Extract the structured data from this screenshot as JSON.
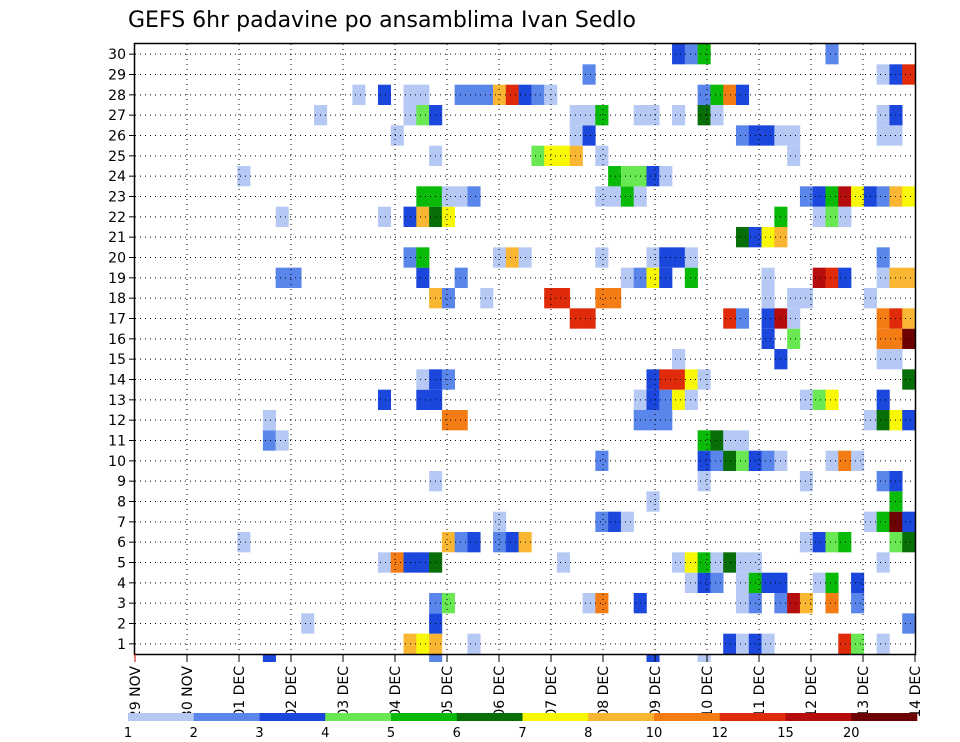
{
  "chart_data": {
    "type": "heatmap",
    "title": "GEFS 6hr padavine po ansamblima Ivan Sedlo",
    "x_tick_labels": [
      "29 NOV",
      "30 NOV",
      "01 DEC",
      "02 DEC",
      "03 DEC",
      "04 DEC",
      "05 DEC",
      "06 DEC",
      "07 DEC",
      "08 DEC",
      "09 DEC",
      "10 DEC",
      "11 DEC",
      "12 DEC",
      "13 DEC",
      "14 DEC"
    ],
    "y_members": [
      1,
      2,
      3,
      4,
      5,
      6,
      7,
      8,
      9,
      10,
      11,
      12,
      13,
      14,
      15,
      16,
      17,
      18,
      19,
      20,
      21,
      22,
      23,
      24,
      25,
      26,
      27,
      28,
      29,
      30
    ],
    "time_step_hours": 6,
    "columns": 61,
    "ylim": [
      0,
      30
    ],
    "grid": true,
    "legend_position": "bottom",
    "levels": [
      1,
      2,
      3,
      4,
      5,
      6,
      7,
      8,
      10,
      12,
      15,
      20
    ],
    "level_labels": [
      "1",
      "2",
      "3",
      "4",
      "5",
      "6",
      "7",
      "8",
      "10",
      "12",
      "15",
      "20"
    ],
    "colors": [
      "#b6c9f5",
      "#5a86ec",
      "#1c47dc",
      "#69e854",
      "#09ba09",
      "#086e08",
      "#f8f806",
      "#f8b632",
      "#f37c14",
      "#e02b0b",
      "#b50d0d",
      "#6e0202"
    ],
    "cells": [
      [
        1,
        21,
        8
      ],
      [
        1,
        22,
        7
      ],
      [
        1,
        23,
        8
      ],
      [
        1,
        26,
        1
      ],
      [
        1,
        46,
        3
      ],
      [
        1,
        47,
        1
      ],
      [
        1,
        48,
        3
      ],
      [
        1,
        49,
        1
      ],
      [
        1,
        55,
        10
      ],
      [
        1,
        56,
        4
      ],
      [
        1,
        58,
        1
      ],
      [
        2,
        13,
        1
      ],
      [
        2,
        23,
        3
      ],
      [
        2,
        60,
        2
      ],
      [
        3,
        23,
        2
      ],
      [
        3,
        24,
        4
      ],
      [
        3,
        35,
        1
      ],
      [
        3,
        36,
        9
      ],
      [
        3,
        39,
        3
      ],
      [
        3,
        47,
        1
      ],
      [
        3,
        48,
        2
      ],
      [
        3,
        50,
        2
      ],
      [
        3,
        51,
        11
      ],
      [
        3,
        52,
        8
      ],
      [
        3,
        54,
        9
      ],
      [
        3,
        56,
        2
      ],
      [
        4,
        43,
        1
      ],
      [
        4,
        44,
        3
      ],
      [
        4,
        45,
        2
      ],
      [
        4,
        47,
        1
      ],
      [
        4,
        48,
        5
      ],
      [
        4,
        49,
        3
      ],
      [
        4,
        50,
        3
      ],
      [
        4,
        53,
        1
      ],
      [
        4,
        54,
        5
      ],
      [
        4,
        56,
        3
      ],
      [
        5,
        19,
        1
      ],
      [
        5,
        20,
        9
      ],
      [
        5,
        21,
        3
      ],
      [
        5,
        22,
        3
      ],
      [
        5,
        23,
        6
      ],
      [
        5,
        33,
        1
      ],
      [
        5,
        42,
        1
      ],
      [
        5,
        43,
        7
      ],
      [
        5,
        44,
        5
      ],
      [
        5,
        45,
        1
      ],
      [
        5,
        46,
        6
      ],
      [
        5,
        47,
        1
      ],
      [
        5,
        48,
        1
      ],
      [
        5,
        58,
        1
      ],
      [
        6,
        8,
        1
      ],
      [
        6,
        24,
        8
      ],
      [
        6,
        25,
        2
      ],
      [
        6,
        26,
        3
      ],
      [
        6,
        28,
        2
      ],
      [
        6,
        29,
        3
      ],
      [
        6,
        30,
        8
      ],
      [
        6,
        52,
        1
      ],
      [
        6,
        53,
        3
      ],
      [
        6,
        54,
        4
      ],
      [
        6,
        55,
        5
      ],
      [
        6,
        59,
        4
      ],
      [
        6,
        60,
        6
      ],
      [
        7,
        28,
        1
      ],
      [
        7,
        36,
        2
      ],
      [
        7,
        37,
        3
      ],
      [
        7,
        38,
        1
      ],
      [
        7,
        57,
        1
      ],
      [
        7,
        58,
        5
      ],
      [
        7,
        59,
        12
      ],
      [
        7,
        60,
        3
      ],
      [
        8,
        40,
        1
      ],
      [
        8,
        59,
        5
      ],
      [
        9,
        23,
        1
      ],
      [
        9,
        44,
        1
      ],
      [
        9,
        52,
        1
      ],
      [
        9,
        58,
        2
      ],
      [
        9,
        59,
        3
      ],
      [
        10,
        36,
        2
      ],
      [
        10,
        44,
        3
      ],
      [
        10,
        45,
        2
      ],
      [
        10,
        46,
        6
      ],
      [
        10,
        47,
        4
      ],
      [
        10,
        48,
        3
      ],
      [
        10,
        49,
        2
      ],
      [
        10,
        50,
        1
      ],
      [
        10,
        54,
        1
      ],
      [
        10,
        55,
        9
      ],
      [
        10,
        56,
        1
      ],
      [
        11,
        10,
        2
      ],
      [
        11,
        11,
        1
      ],
      [
        11,
        44,
        5
      ],
      [
        11,
        45,
        6
      ],
      [
        11,
        46,
        1
      ],
      [
        11,
        47,
        1
      ],
      [
        12,
        10,
        1
      ],
      [
        12,
        24,
        9
      ],
      [
        12,
        25,
        9
      ],
      [
        12,
        39,
        2
      ],
      [
        12,
        40,
        2
      ],
      [
        12,
        41,
        2
      ],
      [
        12,
        57,
        1
      ],
      [
        12,
        58,
        6
      ],
      [
        12,
        59,
        7
      ],
      [
        12,
        60,
        3
      ],
      [
        13,
        19,
        3
      ],
      [
        13,
        22,
        3
      ],
      [
        13,
        23,
        3
      ],
      [
        13,
        39,
        1
      ],
      [
        13,
        40,
        3
      ],
      [
        13,
        41,
        2
      ],
      [
        13,
        42,
        7
      ],
      [
        13,
        43,
        1
      ],
      [
        13,
        52,
        1
      ],
      [
        13,
        53,
        4
      ],
      [
        13,
        54,
        7
      ],
      [
        13,
        58,
        3
      ],
      [
        14,
        22,
        1
      ],
      [
        14,
        23,
        3
      ],
      [
        14,
        24,
        2
      ],
      [
        14,
        40,
        3
      ],
      [
        14,
        41,
        10
      ],
      [
        14,
        42,
        10
      ],
      [
        14,
        43,
        7
      ],
      [
        14,
        44,
        1
      ],
      [
        14,
        60,
        6
      ],
      [
        15,
        42,
        1
      ],
      [
        15,
        50,
        3
      ],
      [
        15,
        58,
        1
      ],
      [
        15,
        59,
        1
      ],
      [
        16,
        49,
        3
      ],
      [
        16,
        51,
        4
      ],
      [
        16,
        58,
        9
      ],
      [
        16,
        59,
        9
      ],
      [
        16,
        60,
        12
      ],
      [
        17,
        34,
        10
      ],
      [
        17,
        35,
        10
      ],
      [
        17,
        46,
        10
      ],
      [
        17,
        47,
        2
      ],
      [
        17,
        49,
        3
      ],
      [
        17,
        50,
        11
      ],
      [
        17,
        51,
        1
      ],
      [
        17,
        58,
        9
      ],
      [
        17,
        59,
        10
      ],
      [
        17,
        60,
        8
      ],
      [
        18,
        23,
        8
      ],
      [
        18,
        24,
        2
      ],
      [
        18,
        27,
        1
      ],
      [
        18,
        32,
        10
      ],
      [
        18,
        33,
        10
      ],
      [
        18,
        36,
        9
      ],
      [
        18,
        37,
        9
      ],
      [
        18,
        49,
        1
      ],
      [
        18,
        51,
        1
      ],
      [
        18,
        52,
        1
      ],
      [
        18,
        57,
        1
      ],
      [
        19,
        11,
        2
      ],
      [
        19,
        12,
        2
      ],
      [
        19,
        22,
        3
      ],
      [
        19,
        25,
        2
      ],
      [
        19,
        38,
        1
      ],
      [
        19,
        39,
        2
      ],
      [
        19,
        40,
        7
      ],
      [
        19,
        41,
        3
      ],
      [
        19,
        43,
        5
      ],
      [
        19,
        49,
        1
      ],
      [
        19,
        53,
        11
      ],
      [
        19,
        54,
        10
      ],
      [
        19,
        55,
        3
      ],
      [
        19,
        58,
        1
      ],
      [
        19,
        59,
        8
      ],
      [
        19,
        60,
        8
      ],
      [
        20,
        21,
        2
      ],
      [
        20,
        22,
        5
      ],
      [
        20,
        28,
        1
      ],
      [
        20,
        29,
        8
      ],
      [
        20,
        30,
        1
      ],
      [
        20,
        36,
        1
      ],
      [
        20,
        40,
        1
      ],
      [
        20,
        41,
        3
      ],
      [
        20,
        42,
        3
      ],
      [
        20,
        43,
        1
      ],
      [
        20,
        58,
        2
      ],
      [
        21,
        47,
        6
      ],
      [
        21,
        48,
        3
      ],
      [
        21,
        49,
        7
      ],
      [
        21,
        50,
        8
      ],
      [
        22,
        11,
        1
      ],
      [
        22,
        19,
        1
      ],
      [
        22,
        21,
        3
      ],
      [
        22,
        22,
        8
      ],
      [
        22,
        23,
        6
      ],
      [
        22,
        24,
        7
      ],
      [
        22,
        50,
        5
      ],
      [
        22,
        53,
        1
      ],
      [
        22,
        54,
        4
      ],
      [
        22,
        55,
        1
      ],
      [
        23,
        22,
        5
      ],
      [
        23,
        23,
        5
      ],
      [
        23,
        24,
        1
      ],
      [
        23,
        25,
        1
      ],
      [
        23,
        26,
        2
      ],
      [
        23,
        36,
        1
      ],
      [
        23,
        37,
        1
      ],
      [
        23,
        38,
        5
      ],
      [
        23,
        39,
        1
      ],
      [
        23,
        52,
        2
      ],
      [
        23,
        53,
        3
      ],
      [
        23,
        54,
        5
      ],
      [
        23,
        55,
        11
      ],
      [
        23,
        56,
        7
      ],
      [
        23,
        57,
        3
      ],
      [
        23,
        58,
        2
      ],
      [
        23,
        59,
        8
      ],
      [
        23,
        60,
        7
      ],
      [
        24,
        8,
        1
      ],
      [
        24,
        37,
        5
      ],
      [
        24,
        38,
        4
      ],
      [
        24,
        39,
        4
      ],
      [
        24,
        40,
        3
      ],
      [
        24,
        41,
        1
      ],
      [
        25,
        23,
        1
      ],
      [
        25,
        31,
        4
      ],
      [
        25,
        32,
        7
      ],
      [
        25,
        33,
        7
      ],
      [
        25,
        34,
        8
      ],
      [
        25,
        36,
        1
      ],
      [
        25,
        51,
        1
      ],
      [
        26,
        20,
        1
      ],
      [
        26,
        34,
        1
      ],
      [
        26,
        35,
        3
      ],
      [
        26,
        47,
        2
      ],
      [
        26,
        48,
        3
      ],
      [
        26,
        49,
        3
      ],
      [
        26,
        50,
        1
      ],
      [
        26,
        51,
        1
      ],
      [
        26,
        58,
        1
      ],
      [
        26,
        59,
        1
      ],
      [
        27,
        14,
        1
      ],
      [
        27,
        21,
        1
      ],
      [
        27,
        22,
        4
      ],
      [
        27,
        23,
        3
      ],
      [
        27,
        34,
        1
      ],
      [
        27,
        35,
        1
      ],
      [
        27,
        36,
        5
      ],
      [
        27,
        39,
        1
      ],
      [
        27,
        40,
        1
      ],
      [
        27,
        42,
        1
      ],
      [
        27,
        44,
        6
      ],
      [
        27,
        45,
        1
      ],
      [
        27,
        58,
        1
      ],
      [
        27,
        59,
        3
      ],
      [
        28,
        17,
        1
      ],
      [
        28,
        19,
        3
      ],
      [
        28,
        21,
        1
      ],
      [
        28,
        22,
        1
      ],
      [
        28,
        25,
        2
      ],
      [
        28,
        26,
        2
      ],
      [
        28,
        27,
        2
      ],
      [
        28,
        28,
        8
      ],
      [
        28,
        29,
        10
      ],
      [
        28,
        30,
        3
      ],
      [
        28,
        31,
        2
      ],
      [
        28,
        32,
        1
      ],
      [
        28,
        44,
        2
      ],
      [
        28,
        45,
        5
      ],
      [
        28,
        46,
        9
      ],
      [
        28,
        47,
        3
      ],
      [
        29,
        35,
        2
      ],
      [
        29,
        58,
        1
      ],
      [
        29,
        59,
        3
      ],
      [
        29,
        60,
        10
      ],
      [
        30,
        42,
        3
      ],
      [
        30,
        43,
        2
      ],
      [
        30,
        44,
        5
      ],
      [
        30,
        54,
        2
      ]
    ],
    "bottom_row_marks": [
      [
        -1,
        10,
        3
      ],
      [
        -1,
        23,
        2
      ],
      [
        -1,
        40,
        3
      ],
      [
        -1,
        44,
        1
      ]
    ]
  }
}
